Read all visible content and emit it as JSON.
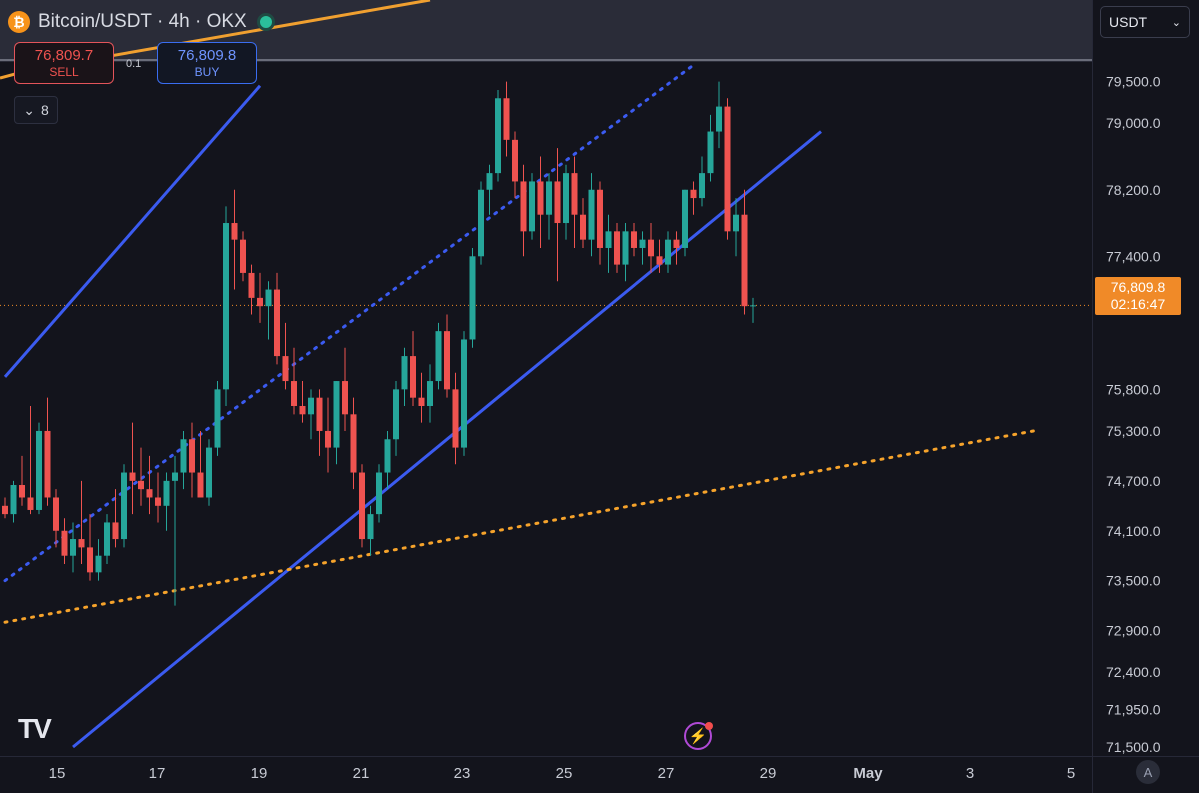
{
  "header": {
    "coin_symbol": "₿",
    "title": "Bitcoin/USDT · 4h · OKX"
  },
  "trade": {
    "sell_price": "76,809.7",
    "sell_label": "SELL",
    "buy_price": "76,809.8",
    "buy_label": "BUY",
    "spread": "0.1"
  },
  "collapse": {
    "icon": "chevron-down-icon",
    "count": "8"
  },
  "currency": {
    "value": "USDT"
  },
  "price_tag": {
    "price": "76,809.8",
    "countdown": "02:16:47"
  },
  "logo": {
    "text": "TV"
  },
  "colors": {
    "up": "#26a69a",
    "down": "#ef5350",
    "channel": "#3b5bf0",
    "orange": "#f6a32b",
    "price_line": "#f08a28",
    "background": "#13141c"
  },
  "chart_data": {
    "type": "candlestick",
    "symbol": "Bitcoin/USDT",
    "interval": "4h",
    "exchange": "OKX",
    "ylim": [
      71500,
      79700
    ],
    "y_ticks": [
      {
        "value": 79500,
        "label": "79,500.0"
      },
      {
        "value": 79000,
        "label": "79,000.0"
      },
      {
        "value": 78200,
        "label": "78,200.0"
      },
      {
        "value": 77400,
        "label": "77,400.0"
      },
      {
        "value": 75800,
        "label": "75,800.0"
      },
      {
        "value": 75300,
        "label": "75,300.0"
      },
      {
        "value": 74700,
        "label": "74,700.0"
      },
      {
        "value": 74100,
        "label": "74,100.0"
      },
      {
        "value": 73500,
        "label": "73,500.0"
      },
      {
        "value": 72900,
        "label": "72,900.0"
      },
      {
        "value": 72400,
        "label": "72,400.0"
      },
      {
        "value": 71950,
        "label": "71,950.0"
      },
      {
        "value": 71500,
        "label": "71,500.0"
      }
    ],
    "x_range": [
      "Apr 14 12:00",
      "May 5 20:00"
    ],
    "x_ticks": [
      {
        "date": "Apr 15",
        "label": "15"
      },
      {
        "date": "Apr 17",
        "label": "17"
      },
      {
        "date": "Apr 19",
        "label": "19"
      },
      {
        "date": "Apr 21",
        "label": "21"
      },
      {
        "date": "Apr 23",
        "label": "23"
      },
      {
        "date": "Apr 25",
        "label": "25"
      },
      {
        "date": "Apr 27",
        "label": "27"
      },
      {
        "date": "Apr 29",
        "label": "29"
      },
      {
        "date": "May 1",
        "label": "May"
      },
      {
        "date": "May 3",
        "label": "3"
      },
      {
        "date": "May 5",
        "label": "5"
      }
    ],
    "last_price": 76809.8,
    "candles_ohlc": [
      [
        74400,
        74500,
        74250,
        74300
      ],
      [
        74300,
        74700,
        74200,
        74650
      ],
      [
        74650,
        75000,
        74400,
        74500
      ],
      [
        74500,
        75600,
        74300,
        74350
      ],
      [
        74350,
        75400,
        74300,
        75300
      ],
      [
        75300,
        75700,
        74400,
        74500
      ],
      [
        74500,
        74600,
        73900,
        74100
      ],
      [
        74100,
        74250,
        73700,
        73800
      ],
      [
        73800,
        74200,
        73600,
        74000
      ],
      [
        74000,
        74700,
        73700,
        73900
      ],
      [
        73900,
        74300,
        73500,
        73600
      ],
      [
        73600,
        74000,
        73500,
        73800
      ],
      [
        73800,
        74300,
        73700,
        74200
      ],
      [
        74200,
        74600,
        73900,
        74000
      ],
      [
        74000,
        74900,
        73900,
        74800
      ],
      [
        74800,
        75400,
        74300,
        74700
      ],
      [
        74700,
        75100,
        74400,
        74600
      ],
      [
        74600,
        75000,
        74300,
        74500
      ],
      [
        74500,
        74800,
        74200,
        74400
      ],
      [
        74400,
        74800,
        74100,
        74700
      ],
      [
        74700,
        75000,
        73200,
        74800
      ],
      [
        74800,
        75300,
        74600,
        75200
      ],
      [
        75200,
        75400,
        74500,
        74800
      ],
      [
        74800,
        75300,
        74500,
        74500
      ],
      [
        74500,
        75200,
        74400,
        75100
      ],
      [
        75100,
        75900,
        75000,
        75800
      ],
      [
        75800,
        78000,
        75600,
        77800
      ],
      [
        77800,
        78200,
        77000,
        77600
      ],
      [
        77600,
        77700,
        77100,
        77200
      ],
      [
        77200,
        77300,
        76700,
        76900
      ],
      [
        76900,
        77200,
        76600,
        76800
      ],
      [
        76800,
        77100,
        76400,
        77000
      ],
      [
        77000,
        77200,
        76100,
        76200
      ],
      [
        76200,
        76600,
        75800,
        75900
      ],
      [
        75900,
        76300,
        75500,
        75600
      ],
      [
        75600,
        75900,
        75400,
        75500
      ],
      [
        75500,
        75800,
        75200,
        75700
      ],
      [
        75700,
        75800,
        75000,
        75300
      ],
      [
        75300,
        75700,
        74800,
        75100
      ],
      [
        75100,
        75900,
        74900,
        75900
      ],
      [
        75900,
        76300,
        75300,
        75500
      ],
      [
        75500,
        75700,
        74600,
        74800
      ],
      [
        74800,
        74900,
        73900,
        74000
      ],
      [
        74000,
        74400,
        73800,
        74300
      ],
      [
        74300,
        74900,
        74200,
        74800
      ],
      [
        74800,
        75300,
        74600,
        75200
      ],
      [
        75200,
        75900,
        75000,
        75800
      ],
      [
        75800,
        76300,
        75600,
        76200
      ],
      [
        76200,
        76500,
        75600,
        75700
      ],
      [
        75700,
        76000,
        75400,
        75600
      ],
      [
        75600,
        76100,
        75400,
        75900
      ],
      [
        75900,
        76600,
        75800,
        76500
      ],
      [
        76500,
        76700,
        75700,
        75800
      ],
      [
        75800,
        76000,
        74900,
        75100
      ],
      [
        75100,
        76500,
        75000,
        76400
      ],
      [
        76400,
        77500,
        76300,
        77400
      ],
      [
        77400,
        78300,
        77300,
        78200
      ],
      [
        78200,
        78500,
        77900,
        78400
      ],
      [
        78400,
        79400,
        78300,
        79300
      ],
      [
        79300,
        79500,
        78600,
        78800
      ],
      [
        78800,
        78900,
        78100,
        78300
      ],
      [
        78300,
        78500,
        77400,
        77700
      ],
      [
        77700,
        78400,
        77600,
        78300
      ],
      [
        78300,
        78600,
        77500,
        77900
      ],
      [
        77900,
        78400,
        77600,
        78300
      ],
      [
        78300,
        78700,
        77100,
        77800
      ],
      [
        77800,
        78500,
        77600,
        78400
      ],
      [
        78400,
        78600,
        77500,
        77900
      ],
      [
        77900,
        78100,
        77500,
        77600
      ],
      [
        77600,
        78400,
        77400,
        78200
      ],
      [
        78200,
        78300,
        77300,
        77500
      ],
      [
        77500,
        77900,
        77200,
        77700
      ],
      [
        77700,
        77800,
        77200,
        77300
      ],
      [
        77300,
        77800,
        77100,
        77700
      ],
      [
        77700,
        77800,
        77400,
        77500
      ],
      [
        77500,
        77700,
        77300,
        77600
      ],
      [
        77600,
        77800,
        77200,
        77400
      ],
      [
        77400,
        77600,
        77200,
        77300
      ],
      [
        77300,
        77700,
        77200,
        77600
      ],
      [
        77600,
        77700,
        77300,
        77500
      ],
      [
        77500,
        78200,
        77400,
        78200
      ],
      [
        78200,
        78300,
        77900,
        78100
      ],
      [
        78100,
        78600,
        78000,
        78400
      ],
      [
        78400,
        79100,
        78300,
        78900
      ],
      [
        78900,
        79500,
        78700,
        79200
      ],
      [
        79200,
        79300,
        77600,
        77700
      ],
      [
        77700,
        78100,
        77400,
        77900
      ],
      [
        77900,
        78200,
        76700,
        76800
      ],
      [
        76800,
        76900,
        76600,
        76809.8
      ]
    ],
    "trendlines": [
      {
        "style": "solid",
        "color": "channel",
        "from": [
          0,
          75950
        ],
        "to": [
          30,
          79450
        ]
      },
      {
        "style": "solid",
        "color": "channel",
        "from": [
          8,
          71500
        ],
        "to": [
          96,
          78900
        ]
      },
      {
        "style": "dotted",
        "color": "channel",
        "from": [
          0,
          73500
        ],
        "to": [
          81,
          79700
        ]
      },
      {
        "style": "dotted",
        "color": "orange",
        "from": [
          0,
          73000
        ],
        "to": [
          121,
          75300
        ]
      }
    ]
  }
}
